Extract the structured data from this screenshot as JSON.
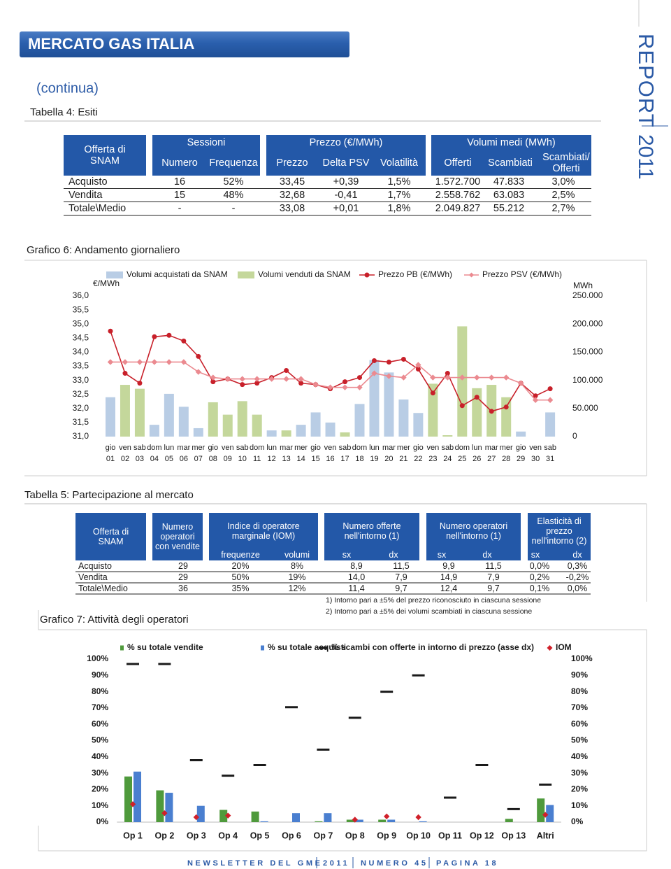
{
  "header": {
    "title": "MERCATO GAS ITALIA",
    "continuation": "(continua)"
  },
  "side": {
    "word": "REPORT",
    "year": "2011"
  },
  "table4": {
    "caption": "Tabella 4: Esiti",
    "corner": "Offerta di SNAM",
    "groups": [
      {
        "label": "Sessioni",
        "columns": [
          "Numero",
          "Frequenza"
        ]
      },
      {
        "label": "Prezzo (€/MWh)",
        "columns": [
          "Prezzo",
          "Delta PSV",
          "Volatilità"
        ]
      },
      {
        "label": "Volumi medi (MWh)",
        "columns": [
          "Offerti",
          "Scambiati",
          "Scambiati/ Offerti"
        ]
      }
    ],
    "rows": [
      [
        "Acquisto",
        "16",
        "52%",
        "33,45",
        "+0,39",
        "1,5%",
        "1.572.700",
        "47.833",
        "3,0%"
      ],
      [
        "Vendita",
        "15",
        "48%",
        "32,68",
        "-0,41",
        "1,7%",
        "2.558.762",
        "63.083",
        "2,5%"
      ],
      [
        "Totale\\Medio",
        "-",
        "-",
        "33,08",
        "+0,01",
        "1,8%",
        "2.049.827",
        "55.212",
        "2,7%"
      ]
    ]
  },
  "table5": {
    "caption": "Tabella 5: Partecipazione al mercato",
    "corner": "Offerta di SNAM",
    "groups": [
      {
        "label": "Numero operatori con vendite"
      },
      {
        "label": "Indice di operatore marginale (IOM)",
        "columns": [
          "frequenze",
          "volumi"
        ]
      },
      {
        "label": "Numero offerte nell'intorno (1)",
        "columns": [
          "sx",
          "dx"
        ]
      },
      {
        "label": "Numero operatori nell'intorno (1)",
        "columns": [
          "sx",
          "dx"
        ]
      },
      {
        "label": "Elasticità di prezzo nell'intorno (2)",
        "columns": [
          "sx",
          "dx"
        ]
      }
    ],
    "rows": [
      [
        "Acquisto",
        "29",
        "20%",
        "8%",
        "8,9",
        "11,5",
        "9,9",
        "11,5",
        "0,0%",
        "0,3%"
      ],
      [
        "Vendita",
        "29",
        "50%",
        "19%",
        "14,0",
        "7,9",
        "14,9",
        "7,9",
        "0,2%",
        "-0,2%"
      ],
      [
        "Totale\\Medio",
        "36",
        "35%",
        "12%",
        "11,4",
        "9,7",
        "12,4",
        "9,7",
        "0,1%",
        "0,0%"
      ]
    ],
    "notes": [
      "1) Intorno pari a ±5% del prezzo riconosciuto in ciascuna sessione",
      "2) Intorno pari a ±5% dei volumi scambiati in ciascuna sessione"
    ]
  },
  "chart_data": [
    {
      "type": "combo",
      "title": "Grafico 6: Andamento giornaliero",
      "ylabel": "€/MWh",
      "y2label": "MWh",
      "bar_layout": "overlap",
      "grid": false,
      "categories": [
        "gio 01",
        "ven 02",
        "sab 03",
        "dom 04",
        "lun 05",
        "mar 06",
        "mer 07",
        "gio 08",
        "ven 09",
        "sab 10",
        "dom 11",
        "lun 12",
        "mar 13",
        "mer 14",
        "gio 15",
        "ven 16",
        "sab 17",
        "dom 18",
        "lun 19",
        "mar 20",
        "mer 21",
        "gio 22",
        "ven 23",
        "sab 24",
        "dom 25",
        "lun 26",
        "mar 27",
        "mer 28",
        "gio 29",
        "ven 30",
        "sab 31"
      ],
      "ylim": [
        31,
        36
      ],
      "yticks": [
        {
          "value": 31,
          "label": "31,0"
        },
        {
          "value": 31.5,
          "label": "31,5"
        },
        {
          "value": 32,
          "label": "32,0"
        },
        {
          "value": 32.5,
          "label": "32,5"
        },
        {
          "value": 33,
          "label": "33,0"
        },
        {
          "value": 33.5,
          "label": "33,5"
        },
        {
          "value": 34,
          "label": "34,0"
        },
        {
          "value": 34.5,
          "label": "34,5"
        },
        {
          "value": 35,
          "label": "35,0"
        },
        {
          "value": 35.5,
          "label": "35,5"
        },
        {
          "value": 36,
          "label": "36,0"
        }
      ],
      "y2lim": [
        0,
        250000
      ],
      "y2ticks": [
        0,
        {
          "value": 50000,
          "label": "50.000"
        },
        {
          "value": 100000,
          "label": "100.000"
        },
        {
          "value": 150000,
          "label": "150.000"
        },
        {
          "value": 200000,
          "label": "200.000"
        },
        {
          "value": 250000,
          "label": "250.000"
        }
      ],
      "series": [
        {
          "name": "Volumi acquistati da SNAM",
          "type": "bar",
          "axis": "y2",
          "color": "#b9cde5",
          "values": [
            70000,
            0,
            0,
            21000,
            76000,
            53000,
            15000,
            0,
            0,
            0,
            0,
            11000,
            0,
            21000,
            43000,
            25000,
            0,
            58000,
            136000,
            114000,
            66000,
            42000,
            0,
            0,
            0,
            0,
            0,
            0,
            9000,
            0,
            43000
          ]
        },
        {
          "name": "Volumi venduti da SNAM",
          "type": "bar",
          "axis": "y2",
          "color": "#c4d79b",
          "values": [
            0,
            92000,
            85000,
            0,
            0,
            0,
            0,
            61000,
            39000,
            63000,
            39000,
            0,
            11000,
            0,
            0,
            0,
            7500,
            0,
            0,
            0,
            0,
            0,
            94000,
            2500,
            196000,
            86000,
            92000,
            70000,
            0,
            0,
            0
          ]
        },
        {
          "name": "Prezzo PB (€/MWh)",
          "type": "line",
          "marker": "circle",
          "color": "#c8202a",
          "values": [
            34.75,
            33.25,
            32.9,
            34.55,
            34.6,
            34.4,
            33.85,
            32.95,
            33.05,
            32.85,
            32.9,
            33.1,
            33.35,
            32.9,
            32.85,
            32.7,
            32.95,
            33.1,
            33.7,
            33.65,
            33.75,
            33.4,
            32.55,
            33.25,
            32.1,
            32.4,
            31.9,
            32.05,
            32.9,
            32.45,
            32.7
          ]
        },
        {
          "name": "Prezzo PSV (€/MWh)",
          "type": "line",
          "marker": "diamond",
          "color": "#eb8a90",
          "values": [
            33.65,
            33.65,
            33.65,
            33.65,
            33.65,
            33.65,
            33.3,
            33.1,
            33.05,
            33.05,
            33.05,
            33.05,
            33.05,
            33.05,
            32.85,
            32.75,
            32.75,
            32.75,
            33.25,
            33.15,
            33.1,
            33.55,
            33.1,
            33.1,
            33.1,
            33.1,
            33.1,
            33.1,
            32.9,
            32.3,
            32.3
          ]
        }
      ]
    },
    {
      "type": "combo",
      "title": "Grafico 7: Attività degli operatori",
      "bar_layout": "grouped",
      "grid": false,
      "categories": [
        "Op 1",
        "Op 2",
        "Op 3",
        "Op 4",
        "Op 5",
        "Op 6",
        "Op 7",
        "Op 8",
        "Op 9",
        "Op 10",
        "Op 11",
        "Op 12",
        "Op 13",
        "Altri"
      ],
      "ylim": [
        0,
        100
      ],
      "yticks": [
        {
          "value": 0,
          "label": "0%"
        },
        {
          "value": 10,
          "label": "10%"
        },
        {
          "value": 20,
          "label": "20%"
        },
        {
          "value": 30,
          "label": "30%"
        },
        {
          "value": 40,
          "label": "40%"
        },
        {
          "value": 50,
          "label": "50%"
        },
        {
          "value": 60,
          "label": "60%"
        },
        {
          "value": 70,
          "label": "70%"
        },
        {
          "value": 80,
          "label": "80%"
        },
        {
          "value": 90,
          "label": "90%"
        },
        {
          "value": 100,
          "label": "100%"
        }
      ],
      "y2lim": [
        0,
        100
      ],
      "y2ticks": [
        {
          "value": 0,
          "label": "0%"
        },
        {
          "value": 10,
          "label": "10%"
        },
        {
          "value": 20,
          "label": "20%"
        },
        {
          "value": 30,
          "label": "30%"
        },
        {
          "value": 40,
          "label": "40%"
        },
        {
          "value": 50,
          "label": "50%"
        },
        {
          "value": 60,
          "label": "60%"
        },
        {
          "value": 70,
          "label": "70%"
        },
        {
          "value": 80,
          "label": "80%"
        },
        {
          "value": 90,
          "label": "90%"
        },
        {
          "value": 100,
          "label": "100%"
        }
      ],
      "series": [
        {
          "name": "% su totale vendite",
          "type": "bar",
          "color": "#4f9a3c",
          "values": [
            28,
            19.5,
            0,
            7.5,
            6.5,
            0,
            0.5,
            1.5,
            1.5,
            0,
            0,
            0,
            2,
            14.5
          ]
        },
        {
          "name": "% su totale acquisti",
          "type": "bar",
          "color": "#4a7fd0",
          "values": [
            31,
            18,
            10,
            0,
            0.5,
            5.5,
            5.5,
            1.5,
            1.5,
            0.5,
            0,
            0,
            0,
            10.5
          ]
        },
        {
          "name": "% scambi con offerte in intorno di prezzo (asse dx)",
          "type": "dash",
          "axis": "y2",
          "color": "#1a1a1a",
          "values": [
            97,
            97,
            38,
            28.5,
            35,
            70.5,
            44.5,
            64,
            80,
            90,
            15,
            35,
            8,
            23
          ]
        },
        {
          "name": "IOM",
          "type": "scatter",
          "marker": "diamond",
          "color": "#d0202a",
          "values": [
            11,
            5.5,
            3,
            4,
            null,
            null,
            null,
            1.5,
            3.5,
            3,
            null,
            null,
            null,
            4.5
          ]
        }
      ]
    }
  ],
  "footer": [
    "NEWSLETTER DEL GME",
    "2011",
    "NUMERO 45",
    "PAGINA 18"
  ]
}
